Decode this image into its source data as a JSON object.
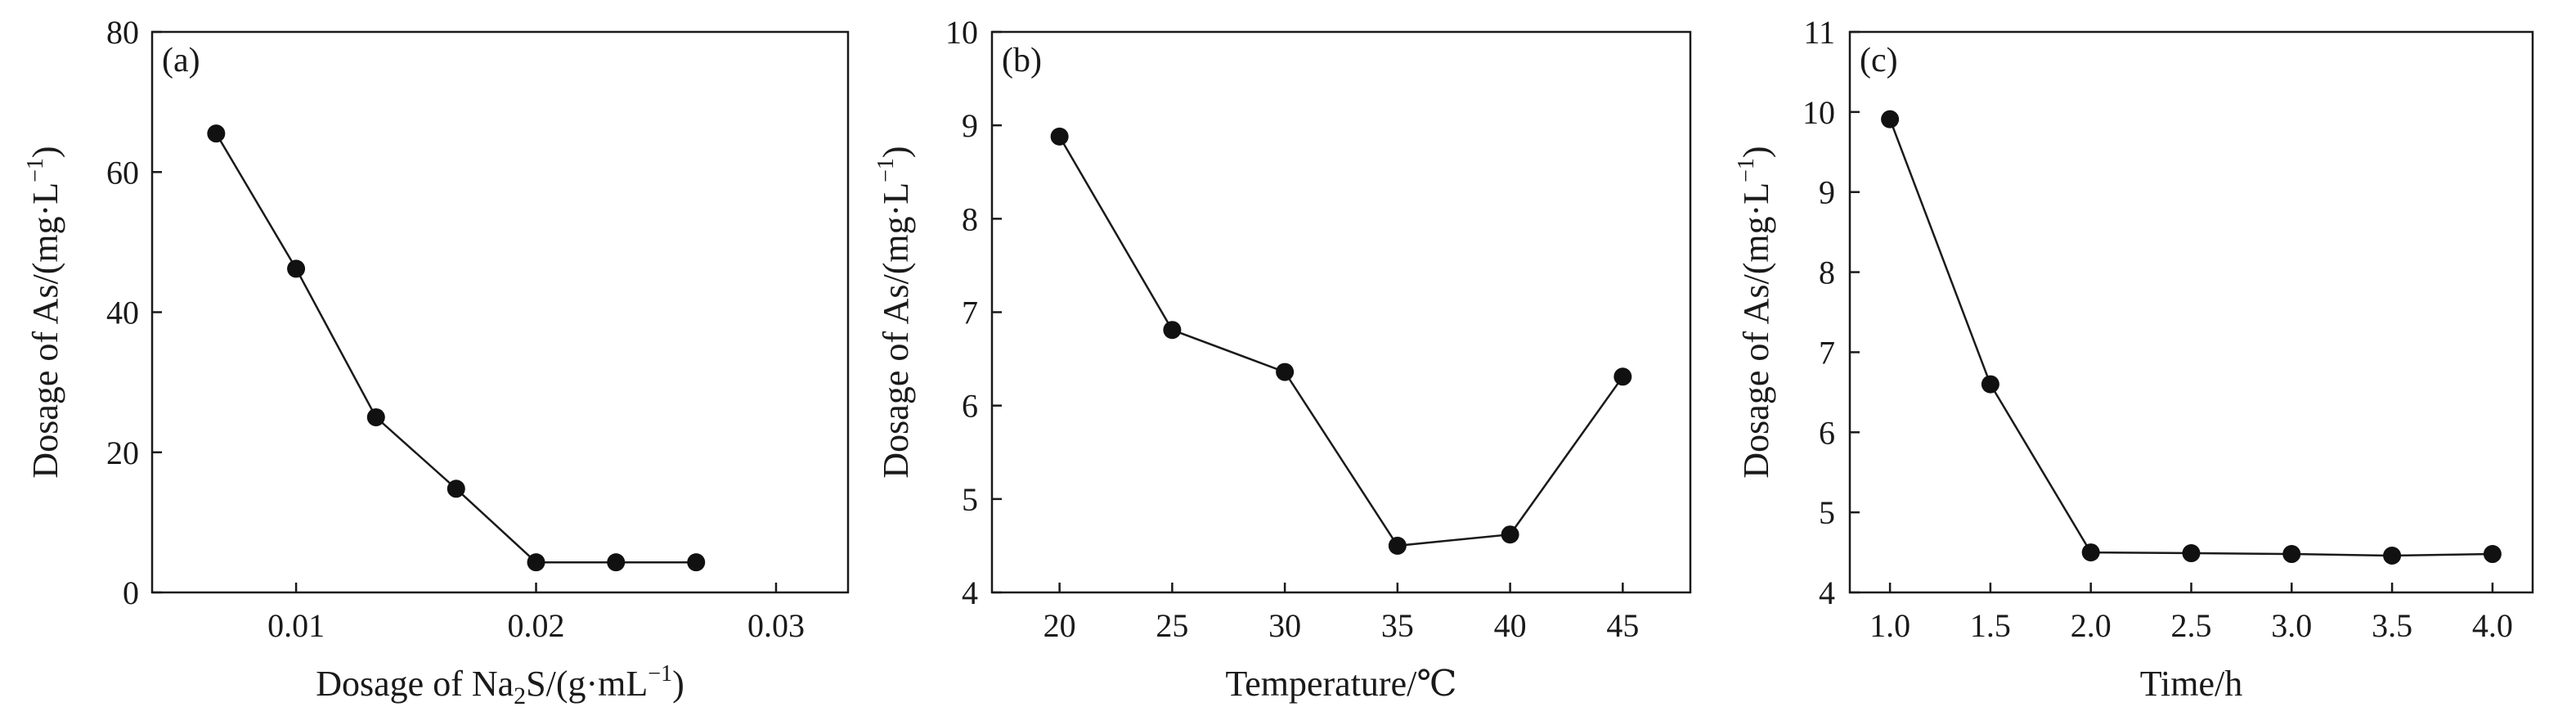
{
  "chart_data": [
    {
      "type": "line",
      "panel_label": "(a)",
      "xlabel_main": "Dosage of Na",
      "xlabel_sub": "2",
      "xlabel_rest": "S/(g·mL",
      "xlabel_sup": "−1",
      "xlabel_end": ")",
      "ylabel_main": "Dosage of As/(mg·L",
      "ylabel_sup": "−1",
      "ylabel_end": ")",
      "xlim": [
        0.004,
        0.033
      ],
      "ylim": [
        0,
        80
      ],
      "xticks": [
        0.01,
        0.02,
        0.03
      ],
      "xtick_labels": [
        "0.01",
        "0.02",
        "0.03"
      ],
      "yticks": [
        0,
        20,
        40,
        60,
        80
      ],
      "ytick_labels": [
        "0",
        "20",
        "40",
        "60",
        "80"
      ],
      "grid": false,
      "series": [
        {
          "x": [
            0.00667,
            0.01,
            0.01333,
            0.01667,
            0.02,
            0.02333,
            0.02667
          ],
          "y": [
            65.5,
            46.2,
            25.0,
            14.8,
            4.3,
            4.3,
            4.3
          ]
        }
      ]
    },
    {
      "type": "line",
      "panel_label": "(b)",
      "xlabel": "Temperature/℃",
      "ylabel_main": "Dosage of As/(mg·L",
      "ylabel_sup": "−1",
      "ylabel_end": ")",
      "xlim": [
        17,
        48
      ],
      "ylim": [
        4,
        10
      ],
      "xticks": [
        20,
        25,
        30,
        35,
        40,
        45
      ],
      "xtick_labels": [
        "20",
        "25",
        "30",
        "35",
        "40",
        "45"
      ],
      "yticks": [
        4,
        5,
        6,
        7,
        8,
        9,
        10
      ],
      "ytick_labels": [
        "4",
        "5",
        "6",
        "7",
        "8",
        "9",
        "10"
      ],
      "grid": false,
      "series": [
        {
          "x": [
            20,
            25,
            30,
            35,
            40,
            45
          ],
          "y": [
            8.88,
            6.81,
            6.36,
            4.5,
            4.62,
            6.31
          ]
        }
      ]
    },
    {
      "type": "line",
      "panel_label": "(c)",
      "xlabel": "Time/h",
      "ylabel_main": "Dosage of As/(mg·L",
      "ylabel_sup": "−1",
      "ylabel_end": ")",
      "xlim": [
        0.8,
        4.2
      ],
      "ylim": [
        4,
        11
      ],
      "xticks": [
        1.0,
        1.5,
        2.0,
        2.5,
        3.0,
        3.5,
        4.0
      ],
      "xtick_labels": [
        "1.0",
        "1.5",
        "2.0",
        "2.5",
        "3.0",
        "3.5",
        "4.0"
      ],
      "yticks": [
        4,
        5,
        6,
        7,
        8,
        9,
        10,
        11
      ],
      "ytick_labels": [
        "4",
        "5",
        "6",
        "7",
        "8",
        "9",
        "10",
        "11"
      ],
      "grid": false,
      "series": [
        {
          "x": [
            1.0,
            1.5,
            2.0,
            2.5,
            3.0,
            3.5,
            4.0
          ],
          "y": [
            9.91,
            6.6,
            4.5,
            4.49,
            4.48,
            4.46,
            4.48
          ]
        }
      ]
    }
  ]
}
